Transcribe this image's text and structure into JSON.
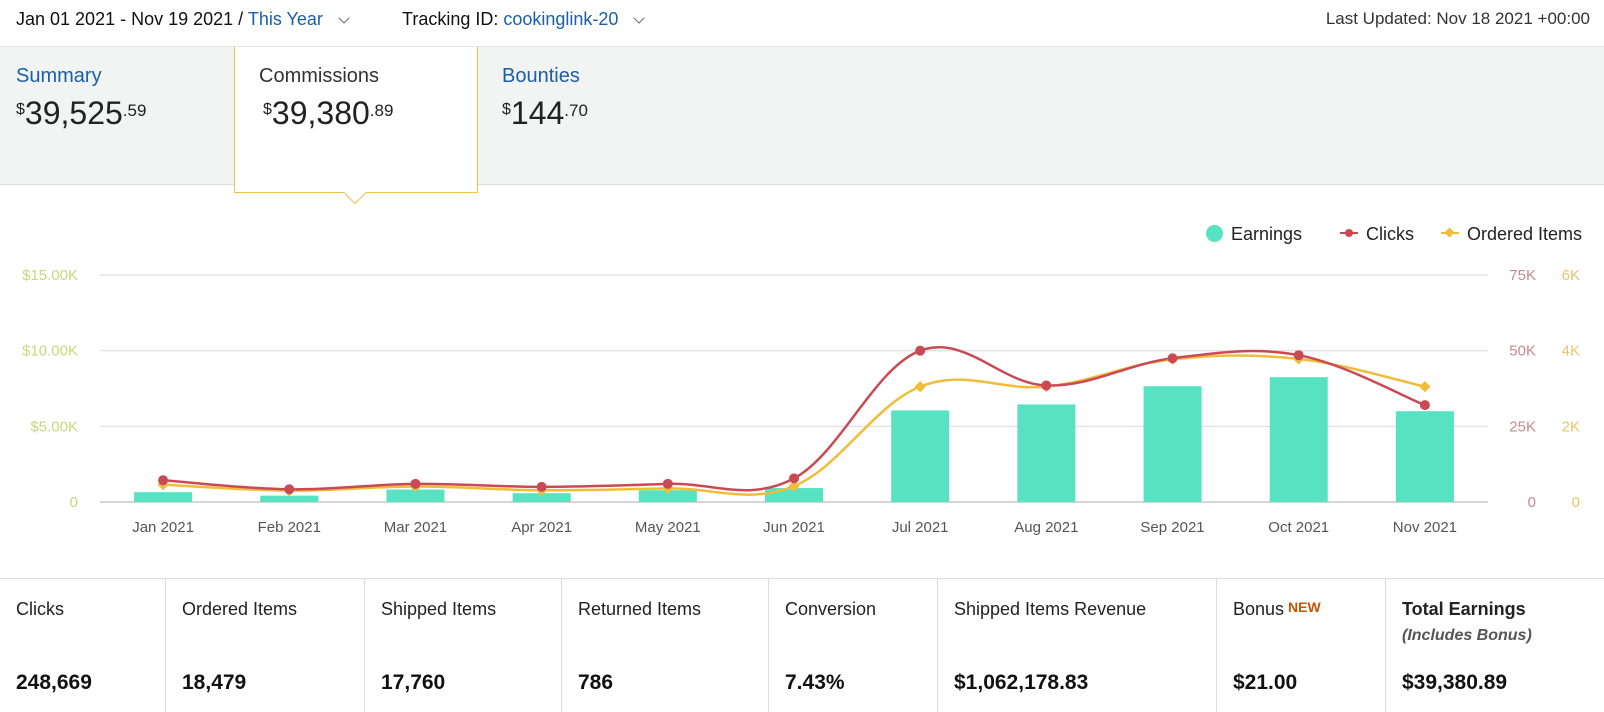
{
  "header": {
    "date_range": "Jan 01 2021 - Nov 19 2021 /",
    "period_link": "This Year",
    "tracking_label": "Tracking ID:",
    "tracking_id": "cookinglink-20",
    "last_updated": "Last Updated: Nov 18 2021 +00:00"
  },
  "tabs": [
    {
      "label": "Summary",
      "currency": "$",
      "whole": "39,525",
      "cents": ".59"
    },
    {
      "label": "Commissions",
      "currency": "$",
      "whole": "39,380",
      "cents": ".89",
      "active": true
    },
    {
      "label": "Bounties",
      "currency": "$",
      "whole": "144",
      "cents": ".70"
    }
  ],
  "legend": {
    "earnings": "Earnings",
    "clicks": "Clicks",
    "ordered_items": "Ordered Items"
  },
  "chart_data": {
    "type": "bar",
    "categories": [
      "Jan 2021",
      "Feb 2021",
      "Mar 2021",
      "Apr 2021",
      "May 2021",
      "Jun 2021",
      "Jul 2021",
      "Aug 2021",
      "Sep 2021",
      "Oct 2021",
      "Nov 2021"
    ],
    "series": [
      {
        "name": "Earnings",
        "type": "bar",
        "axis": "left",
        "color": "#57e2c2",
        "values": [
          650,
          420,
          820,
          580,
          780,
          920,
          6050,
          6450,
          7650,
          8250,
          6000
        ]
      },
      {
        "name": "Clicks",
        "type": "line",
        "axis": "right-1",
        "color": "#c94a54",
        "values": [
          7200,
          4200,
          6000,
          5000,
          6000,
          7800,
          50000,
          38500,
          47500,
          48500,
          32000
        ]
      },
      {
        "name": "Ordered Items",
        "type": "line",
        "axis": "right-2",
        "color": "#f0bd3a",
        "values": [
          460,
          300,
          410,
          310,
          360,
          420,
          3050,
          3050,
          3770,
          3780,
          3050
        ]
      }
    ],
    "y_left": {
      "ticks": [
        "0",
        "$5.00K",
        "$10.00K",
        "$15.00K"
      ],
      "max": 15000
    },
    "y_right1": {
      "ticks": [
        "0",
        "25K",
        "50K",
        "75K"
      ],
      "max": 75000
    },
    "y_right2": {
      "ticks": [
        "0",
        "2K",
        "4K",
        "6K"
      ],
      "max": 6000
    },
    "grid": true,
    "legend_position": "top-right"
  },
  "stats": [
    {
      "label": "Clicks",
      "value": "248,669"
    },
    {
      "label": "Ordered Items",
      "value": "18,479"
    },
    {
      "label": "Shipped Items",
      "value": "17,760"
    },
    {
      "label": "Returned Items",
      "value": "786"
    },
    {
      "label": "Conversion",
      "value": "7.43%"
    },
    {
      "label": "Shipped Items Revenue",
      "value": "$1,062,178.83"
    },
    {
      "label": "Bonus",
      "badge": "NEW",
      "value": "$21.00"
    },
    {
      "label": "Total Earnings",
      "sublabel": "(Includes Bonus)",
      "value": "$39,380.89"
    }
  ],
  "colors": {
    "accent_link": "#1a5fa8",
    "active_tab_border": "#f0c14b",
    "badge": "#c45500"
  },
  "icons": {
    "dropdown": "chevron-down-icon"
  }
}
